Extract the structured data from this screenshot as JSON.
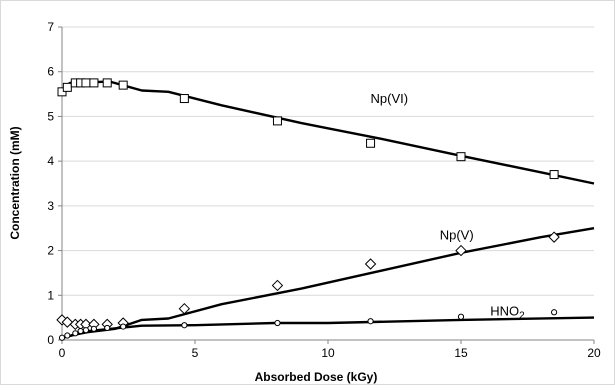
{
  "chart_data": {
    "type": "scatter",
    "title": "",
    "xlabel": "Absorbed Dose (kGy)",
    "ylabel": "Concentration (mM)",
    "xlim": [
      0,
      20
    ],
    "ylim": [
      0,
      7
    ],
    "xticks": [
      0,
      5,
      10,
      15,
      20
    ],
    "yticks": [
      0,
      1,
      2,
      3,
      4,
      5,
      6,
      7
    ],
    "grid": "horizontal",
    "legend": "none",
    "series": [
      {
        "name": "Np(VI)",
        "marker": "square",
        "points": [
          [
            0,
            5.55
          ],
          [
            0.2,
            5.65
          ],
          [
            0.5,
            5.75
          ],
          [
            0.7,
            5.75
          ],
          [
            0.9,
            5.75
          ],
          [
            1.2,
            5.75
          ],
          [
            1.7,
            5.75
          ],
          [
            2.3,
            5.7
          ],
          [
            4.6,
            5.4
          ],
          [
            8.1,
            4.9
          ],
          [
            11.6,
            4.4
          ],
          [
            15,
            4.1
          ],
          [
            18.5,
            3.7
          ]
        ],
        "fit": [
          [
            0,
            5.6
          ],
          [
            0.3,
            5.75
          ],
          [
            1.8,
            5.78
          ],
          [
            3,
            5.58
          ],
          [
            4,
            5.55
          ],
          [
            6,
            5.25
          ],
          [
            9,
            4.85
          ],
          [
            12,
            4.5
          ],
          [
            15,
            4.12
          ],
          [
            18,
            3.75
          ],
          [
            20,
            3.5
          ]
        ],
        "label_x": 11.6,
        "label_y": 5.3
      },
      {
        "name": "Np(V)",
        "marker": "diamond",
        "points": [
          [
            0,
            0.45
          ],
          [
            0.2,
            0.4
          ],
          [
            0.5,
            0.35
          ],
          [
            0.7,
            0.35
          ],
          [
            0.9,
            0.35
          ],
          [
            1.2,
            0.35
          ],
          [
            1.7,
            0.35
          ],
          [
            2.3,
            0.38
          ],
          [
            4.6,
            0.7
          ],
          [
            8.1,
            1.22
          ],
          [
            11.6,
            1.7
          ],
          [
            15,
            2.0
          ],
          [
            18.5,
            2.3
          ]
        ],
        "fit": [
          [
            0,
            0.05
          ],
          [
            0.5,
            0.12
          ],
          [
            1,
            0.18
          ],
          [
            2,
            0.25
          ],
          [
            3,
            0.45
          ],
          [
            4,
            0.48
          ],
          [
            6,
            0.8
          ],
          [
            9,
            1.15
          ],
          [
            12,
            1.55
          ],
          [
            15,
            1.95
          ],
          [
            18,
            2.3
          ],
          [
            20,
            2.5
          ]
        ],
        "label_x": 14.2,
        "label_y": 2.25
      },
      {
        "name": "HNO",
        "name_sub": "2",
        "marker": "circle",
        "points": [
          [
            0,
            0.05
          ],
          [
            0.2,
            0.1
          ],
          [
            0.5,
            0.15
          ],
          [
            0.7,
            0.2
          ],
          [
            0.9,
            0.22
          ],
          [
            1.2,
            0.25
          ],
          [
            1.7,
            0.27
          ],
          [
            2.3,
            0.3
          ],
          [
            4.6,
            0.33
          ],
          [
            8.1,
            0.38
          ],
          [
            11.6,
            0.42
          ],
          [
            15,
            0.52
          ],
          [
            18.5,
            0.62
          ]
        ],
        "fit": [
          [
            0,
            0.05
          ],
          [
            1,
            0.2
          ],
          [
            3,
            0.32
          ],
          [
            5,
            0.33
          ],
          [
            8,
            0.38
          ],
          [
            10,
            0.38
          ],
          [
            15,
            0.45
          ],
          [
            20,
            0.5
          ]
        ],
        "label_x": 16.1,
        "label_y": 0.55
      }
    ]
  }
}
